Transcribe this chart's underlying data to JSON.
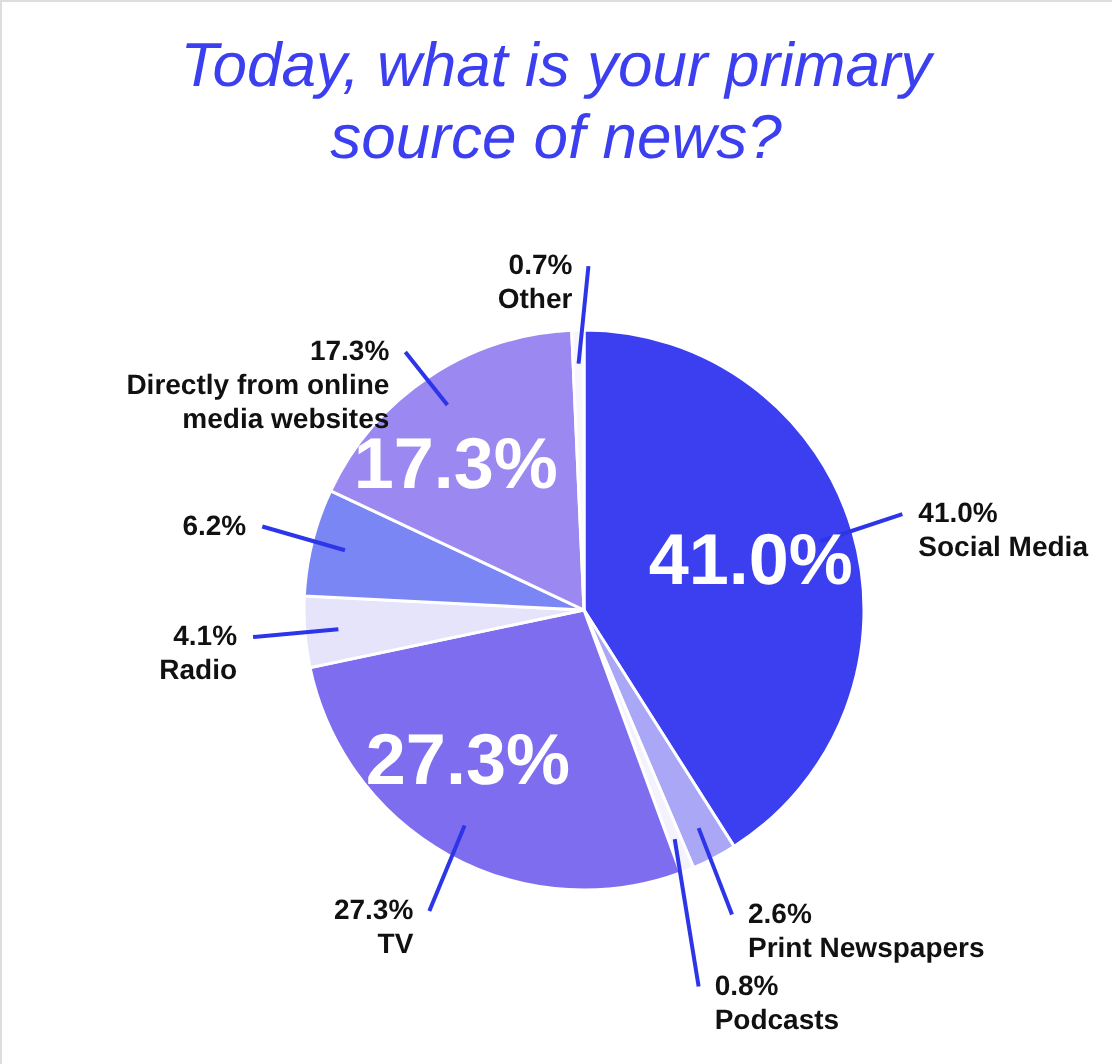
{
  "chart_data": {
    "type": "pie",
    "title": "Today, what is your primary source of news?",
    "categories": [
      "Social Media",
      "Print Newspapers",
      "Podcasts",
      "TV",
      "Radio",
      null,
      "Directly from online media websites",
      "Other"
    ],
    "values": [
      41.0,
      2.6,
      0.8,
      27.3,
      4.1,
      6.2,
      17.3,
      0.7
    ],
    "value_labels": [
      "41.0%",
      "2.6%",
      "0.8%",
      "27.3%",
      "4.1%",
      "6.2%",
      "17.3%",
      "0.7%"
    ],
    "colors": [
      "#3b3ff0",
      "#a9a7f6",
      "#f4f3fd",
      "#7f6df0",
      "#e6e4fb",
      "#7a86f4",
      "#9b89f1",
      "#f7f6fd"
    ],
    "legend": false
  }
}
